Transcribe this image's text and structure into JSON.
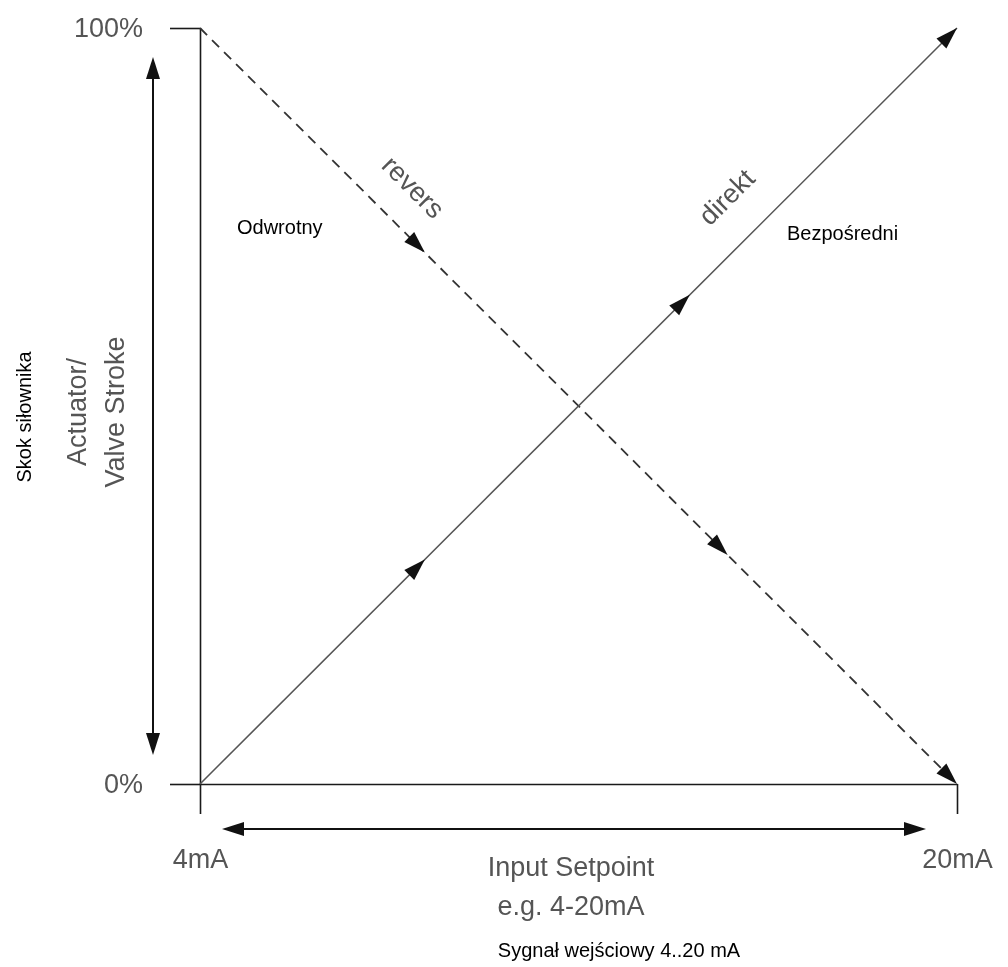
{
  "chart_data": {
    "type": "line",
    "xlabel": "Input Setpoint\ne.g. 4-20mA",
    "ylabel": "Actuator/\nValve Stroke",
    "x": [
      4,
      20
    ],
    "xlim": [
      4,
      20
    ],
    "xticks": [
      {
        "value": 4,
        "label": "4mA"
      },
      {
        "value": 20,
        "label": "20mA"
      }
    ],
    "ylim": [
      0,
      100
    ],
    "yticks": [
      {
        "value": 0,
        "label": "0%"
      },
      {
        "value": 100,
        "label": "100%"
      }
    ],
    "series": [
      {
        "name": "revers",
        "color": "#333333",
        "line_style": "dashed",
        "values": [
          100,
          0
        ]
      },
      {
        "name": "direkt",
        "color": "#555555",
        "line_style": "solid",
        "values": [
          0,
          100
        ]
      }
    ],
    "annotations": [
      "Odwrotny",
      "Bezpośredni",
      "Skok siłownika",
      "Sygnał wejściowy 4..20 mA"
    ]
  }
}
